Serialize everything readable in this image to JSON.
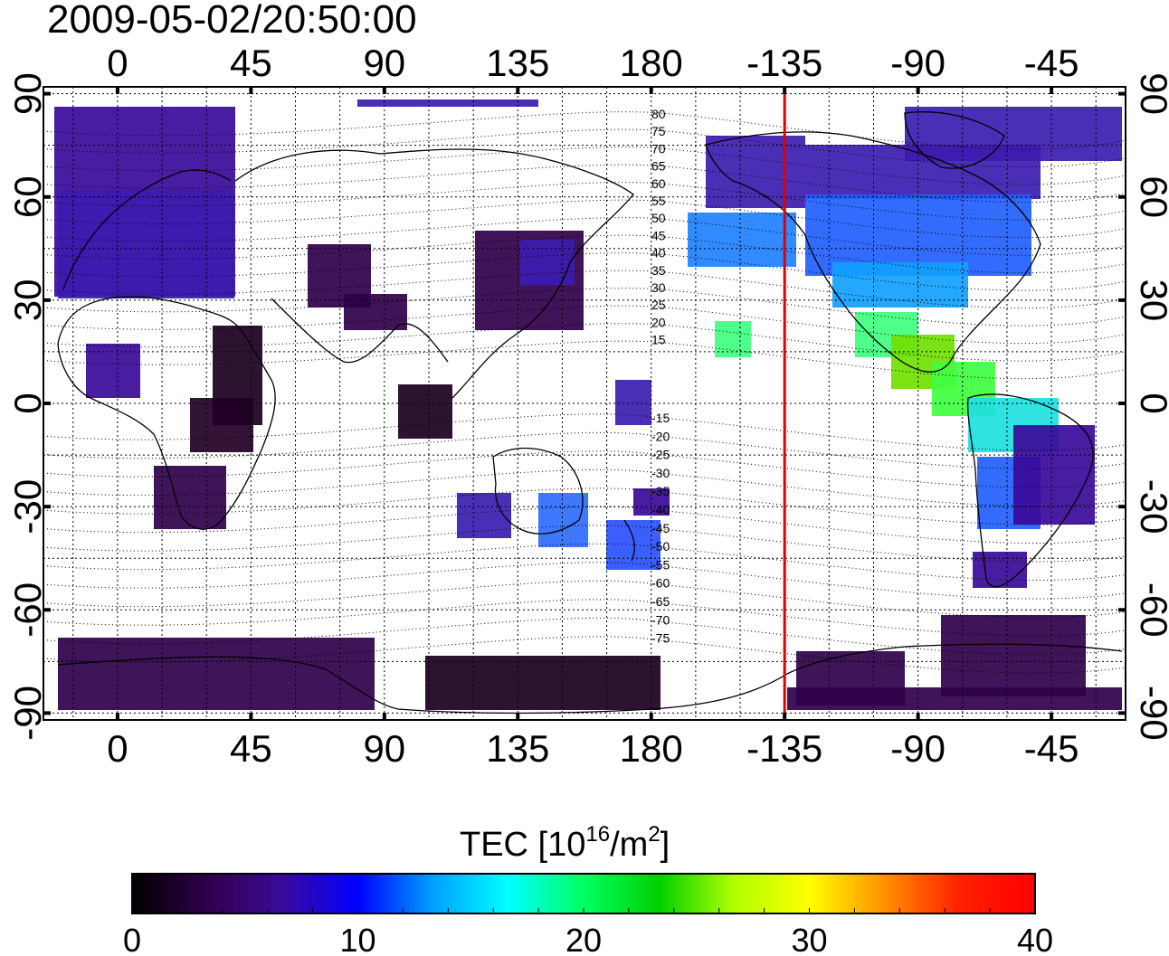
{
  "timestamp": "2009-05-02/20:50:00",
  "map": {
    "lon_ticks": [
      "0",
      "45",
      "90",
      "135",
      "180",
      "-135",
      "-90",
      "-45"
    ],
    "lat_ticks": [
      "90",
      "60",
      "30",
      "0",
      "-30",
      "-60",
      "-90"
    ],
    "lon_range": [
      -25,
      340
    ],
    "lat_range": [
      -92,
      92
    ],
    "grid": true,
    "meridian_marker": {
      "longitude": -135,
      "color": "#e00000"
    },
    "contour_levels_north": [
      "80",
      "75",
      "70",
      "65",
      "60",
      "55",
      "50",
      "45",
      "40",
      "35",
      "30",
      "25",
      "20",
      "15"
    ],
    "contour_levels_south": [
      "-15",
      "-20",
      "-25",
      "-30",
      "-35",
      "-40",
      "-45",
      "-50",
      "-55",
      "-60",
      "-65",
      "-70",
      "-75"
    ]
  },
  "colorbar": {
    "title_main": "TEC  [10",
    "title_sup1": "16",
    "title_mid": "/m",
    "title_sup2": "2",
    "title_end": "]",
    "min": 0,
    "max": 40,
    "tick_labels": [
      "0",
      "10",
      "20",
      "30",
      "40"
    ],
    "colors": [
      "#000000",
      "#30004a",
      "#3a0a9a",
      "#0000ff",
      "#00a0ff",
      "#00ffff",
      "#00ff60",
      "#00d000",
      "#b0ff00",
      "#ffff00",
      "#ff9000",
      "#ff2000",
      "#ff0000"
    ]
  }
}
